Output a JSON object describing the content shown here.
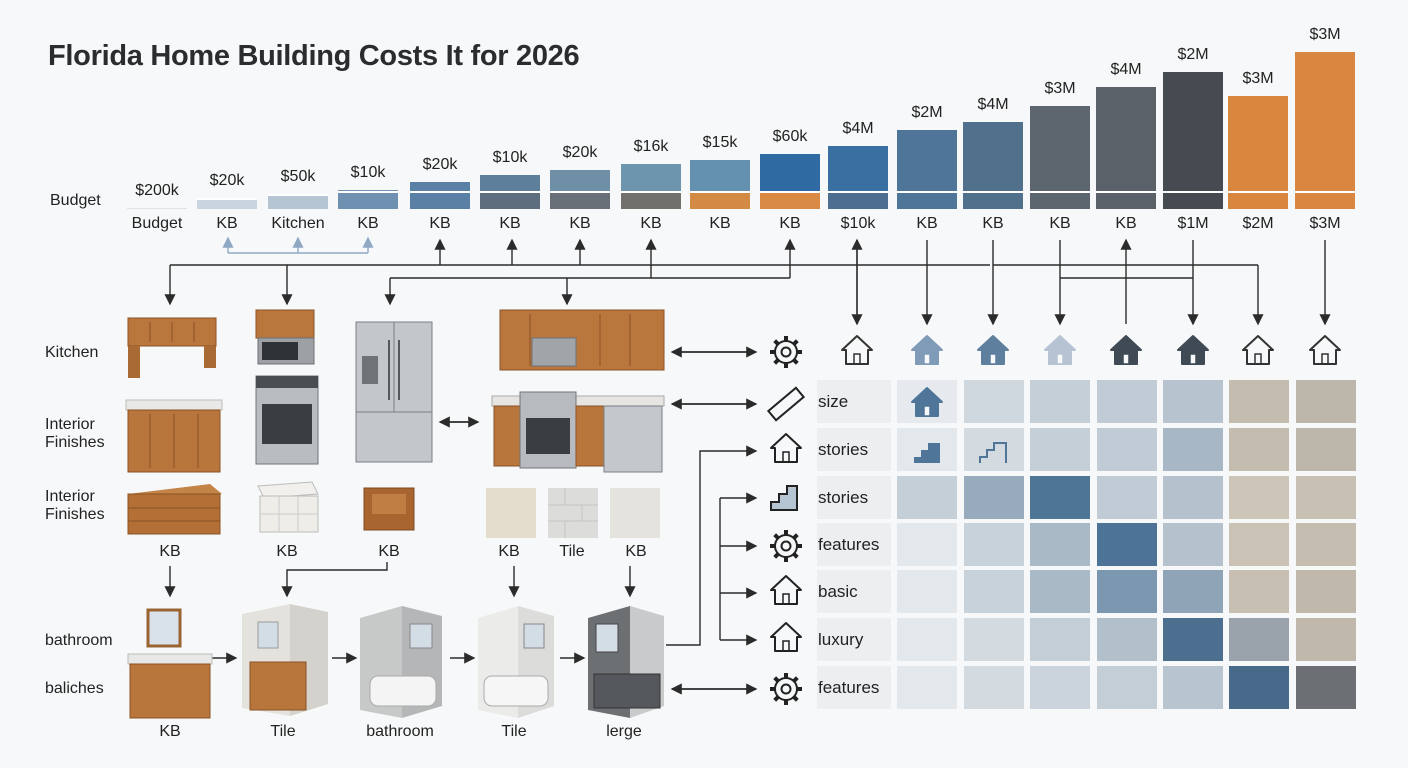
{
  "title": "Florida Home Building Costs It for 2026",
  "row_labels": {
    "budget": "Budget",
    "kitchen": "Kitchen",
    "interior1": "Interior\nFinishes",
    "interior2": "Interior\nFinishes",
    "bathroom": "bathroom",
    "baliches": "baliches"
  },
  "chart_data": {
    "type": "bar",
    "values_labels": [
      "$200k",
      "$20k",
      "$50k",
      "$10k",
      "$20k",
      "$10k",
      "$20k",
      "$16k",
      "$15k",
      "$60k",
      "$4M",
      "$2M",
      "$4M",
      "$3M",
      "$4M",
      "$2M",
      "$3M",
      "$3M"
    ],
    "categories": [
      "Budget",
      "KB",
      "Kitchen",
      "KB",
      "KB",
      "KB",
      "KB",
      "KB",
      "KB",
      "KB",
      "$10k",
      "KB",
      "KB",
      "KB",
      "KB",
      "$1M",
      "$2M",
      "$3M"
    ],
    "bar_colors_top": [
      "#dfe3e8",
      "#c9d4df",
      "#b6c5d3",
      "#6f90b1",
      "#5a80a6",
      "#5d7f9c",
      "#6f8fa6",
      "#6d95ad",
      "#6591b1",
      "#2f6aa3",
      "#3a6fa1",
      "#4f7598",
      "#50708b",
      "#5d666e",
      "#5a6168",
      "#464b52",
      "#d9873e",
      "#d98640"
    ],
    "bar_colors_bottom": [
      "#dfe3e8",
      "#c9d4df",
      "#b6c5d3",
      "#6f90b1",
      "#5a80a6",
      "#5d6e7e",
      "#6a7077",
      "#72706b",
      "#d38a44",
      "#d98a45",
      "#4d6e90",
      "#4f7598",
      "#50708b",
      "#5d666e",
      "#5a6168",
      "#464b52",
      "#d9873e",
      "#d98640"
    ]
  },
  "items_row1": [
    "KB",
    "KB",
    "KB",
    "KB",
    "Tile",
    "KB"
  ],
  "items_row2": [
    "KB",
    "Tile",
    "bathroom",
    "Tile",
    "lerge"
  ],
  "grid": {
    "labels": [
      "size",
      "stories",
      "stories",
      "features",
      "basic",
      "luxury",
      "features"
    ],
    "header_icons": [
      "home-outline-icon",
      "home-filled-light-icon",
      "home-filled-icon",
      "home-filled-pale-icon",
      "home-filled-dark-icon",
      "home-filled-dark-icon",
      "home-outline-icon",
      "home-outline-icon"
    ],
    "row_icons": [
      "gear-icon",
      "ruler-icon",
      "house-outline-icon",
      "stairs-icon",
      "gear-badge-icon",
      "house-outline-icon",
      "house-chat-icon",
      "gear-icon"
    ],
    "cell_colors": [
      [
        "#e6eaee",
        "#cfd8df",
        "#c5cfd8",
        "#c0cbd5",
        "#b7c4d0",
        "#c4bcae",
        "#bdb6aa"
      ],
      [
        "#e3e8ec",
        "#d3dbe1",
        "#c5cfd8",
        "#c0cbd5",
        "#a7b7c6",
        "#c4bcae",
        "#bdb6aa"
      ],
      [
        "#c5cfd8",
        "#98abbd",
        "#4f7595",
        "#c0cbd5",
        "#b5c1cd",
        "#cdc5b8",
        "#c8c0b3"
      ],
      [
        "#e3e8ec",
        "#c8d2da",
        "#a9b9c6",
        "#4d7497",
        "#b5c2cd",
        "#cac2b5",
        "#c5bdb0"
      ],
      [
        "#e3e8ec",
        "#c8d2da",
        "#a9b9c6",
        "#7b98b0",
        "#8fa4b6",
        "#c7bfb2",
        "#c0b8ab"
      ],
      [
        "#e3e8ec",
        "#d3dbe1",
        "#c4ced7",
        "#b2c0cc",
        "#4d6f8f",
        "#9aa3ac",
        "#c0b8ab"
      ],
      [
        "#e3e8ec",
        "#d3dbe1",
        "#cbd4dc",
        "#c4ced7",
        "#b8c5d0",
        "#48698a",
        "#6c7074"
      ]
    ]
  }
}
